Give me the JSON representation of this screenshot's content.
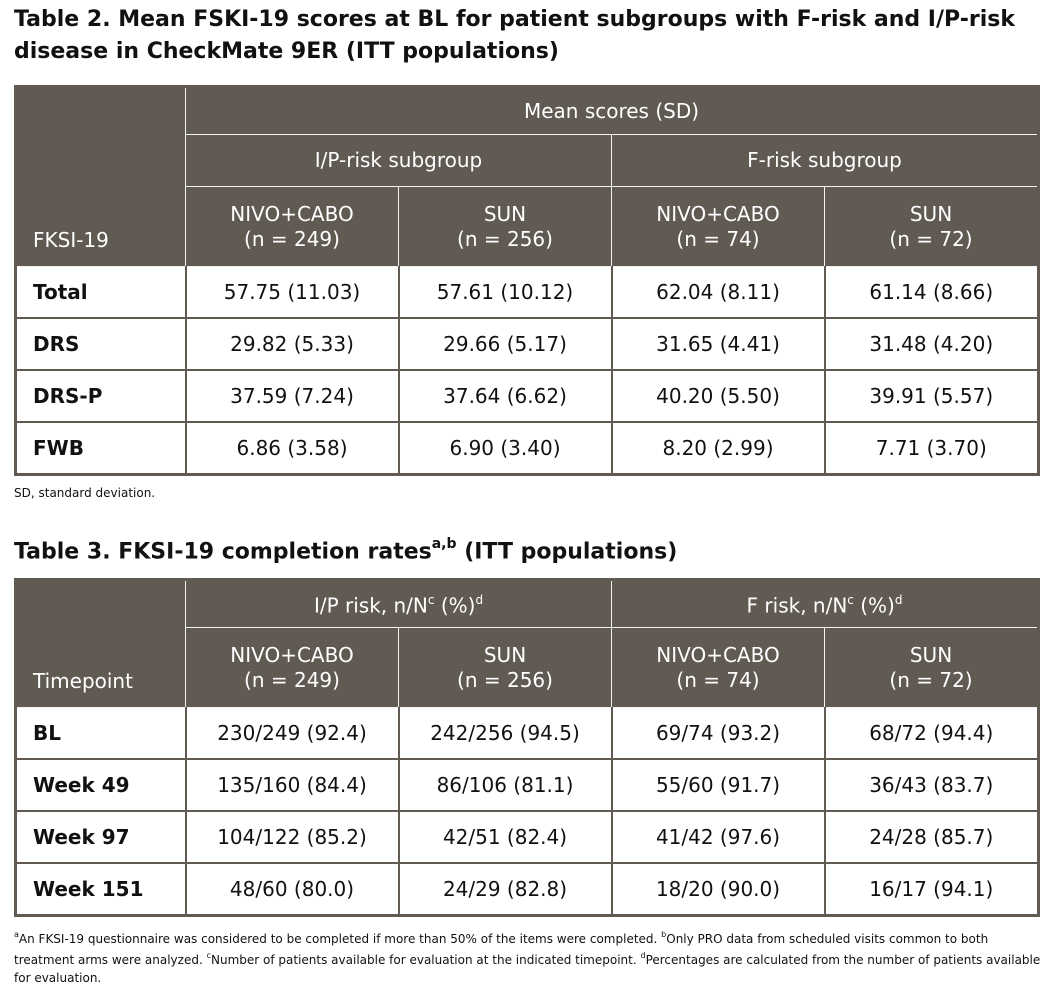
{
  "table2": {
    "title": "Table 2. Mean FSKI-19 scores at BL for patient subgroups with F-risk and I/P-risk disease in CheckMate 9ER (ITT populations)",
    "corner_label": "FKSI-19",
    "group_header": "Mean scores (SD)",
    "subgroups": [
      "I/P-risk subgroup",
      "F-risk subgroup"
    ],
    "arms": [
      {
        "name": "NIVO+CABO",
        "n": "(n = 249)"
      },
      {
        "name": "SUN",
        "n": "(n = 256)"
      },
      {
        "name": "NIVO+CABO",
        "n": "(n = 74)"
      },
      {
        "name": "SUN",
        "n": "(n = 72)"
      }
    ],
    "rows": [
      {
        "label": "Total",
        "values": [
          "57.75 (11.03)",
          "57.61 (10.12)",
          "62.04 (8.11)",
          "61.14 (8.66)"
        ]
      },
      {
        "label": "DRS",
        "values": [
          "29.82 (5.33)",
          "29.66 (5.17)",
          "31.65 (4.41)",
          "31.48 (4.20)"
        ]
      },
      {
        "label": "DRS-P",
        "values": [
          "37.59 (7.24)",
          "37.64 (6.62)",
          "40.20 (5.50)",
          "39.91 (5.57)"
        ]
      },
      {
        "label": "FWB",
        "values": [
          "6.86 (3.58)",
          "6.90 (3.40)",
          "8.20 (2.99)",
          "7.71 (3.70)"
        ]
      }
    ],
    "footnote": "SD, standard deviation."
  },
  "table3": {
    "title": "Table 3. FKSI-19 completion rates",
    "title_sup": "a,b",
    "title_suffix": " (ITT populations)",
    "corner_label": "Timepoint",
    "group_headers": [
      {
        "prefix": "I/P risk, n/N",
        "sup1": "c",
        "mid": " (%)",
        "sup2": "d"
      },
      {
        "prefix": "F risk, n/N",
        "sup1": "c",
        "mid": " (%)",
        "sup2": "d"
      }
    ],
    "arms": [
      {
        "name": "NIVO+CABO",
        "n": "(n = 249)"
      },
      {
        "name": "SUN",
        "n": "(n = 256)"
      },
      {
        "name": "NIVO+CABO",
        "n": "(n = 74)"
      },
      {
        "name": "SUN",
        "n": "(n = 72)"
      }
    ],
    "rows": [
      {
        "label": "BL",
        "values": [
          "230/249 (92.4)",
          "242/256 (94.5)",
          "69/74 (93.2)",
          "68/72 (94.4)"
        ]
      },
      {
        "label": "Week 49",
        "values": [
          "135/160 (84.4)",
          "86/106 (81.1)",
          "55/60 (91.7)",
          "36/43 (83.7)"
        ]
      },
      {
        "label": "Week 97",
        "values": [
          "104/122 (85.2)",
          "42/51 (82.4)",
          "41/42 (97.6)",
          "24/28 (85.7)"
        ]
      },
      {
        "label": "Week 151",
        "values": [
          "48/60 (80.0)",
          "24/29 (82.8)",
          "18/20 (90.0)",
          "16/17 (94.1)"
        ]
      }
    ],
    "footnotes": [
      {
        "sup": "a",
        "text": "An FKSI-19 questionnaire was considered to be completed if more than 50% of the items were completed. "
      },
      {
        "sup": "b",
        "text": "Only PRO data from scheduled visits common to both treatment arms were analyzed. "
      },
      {
        "sup": "c",
        "text": "Number of patients available for evaluation at the indicated timepoint. "
      },
      {
        "sup": "d",
        "text": "Percentages are calculated from the number of patients available for evaluation."
      }
    ]
  }
}
